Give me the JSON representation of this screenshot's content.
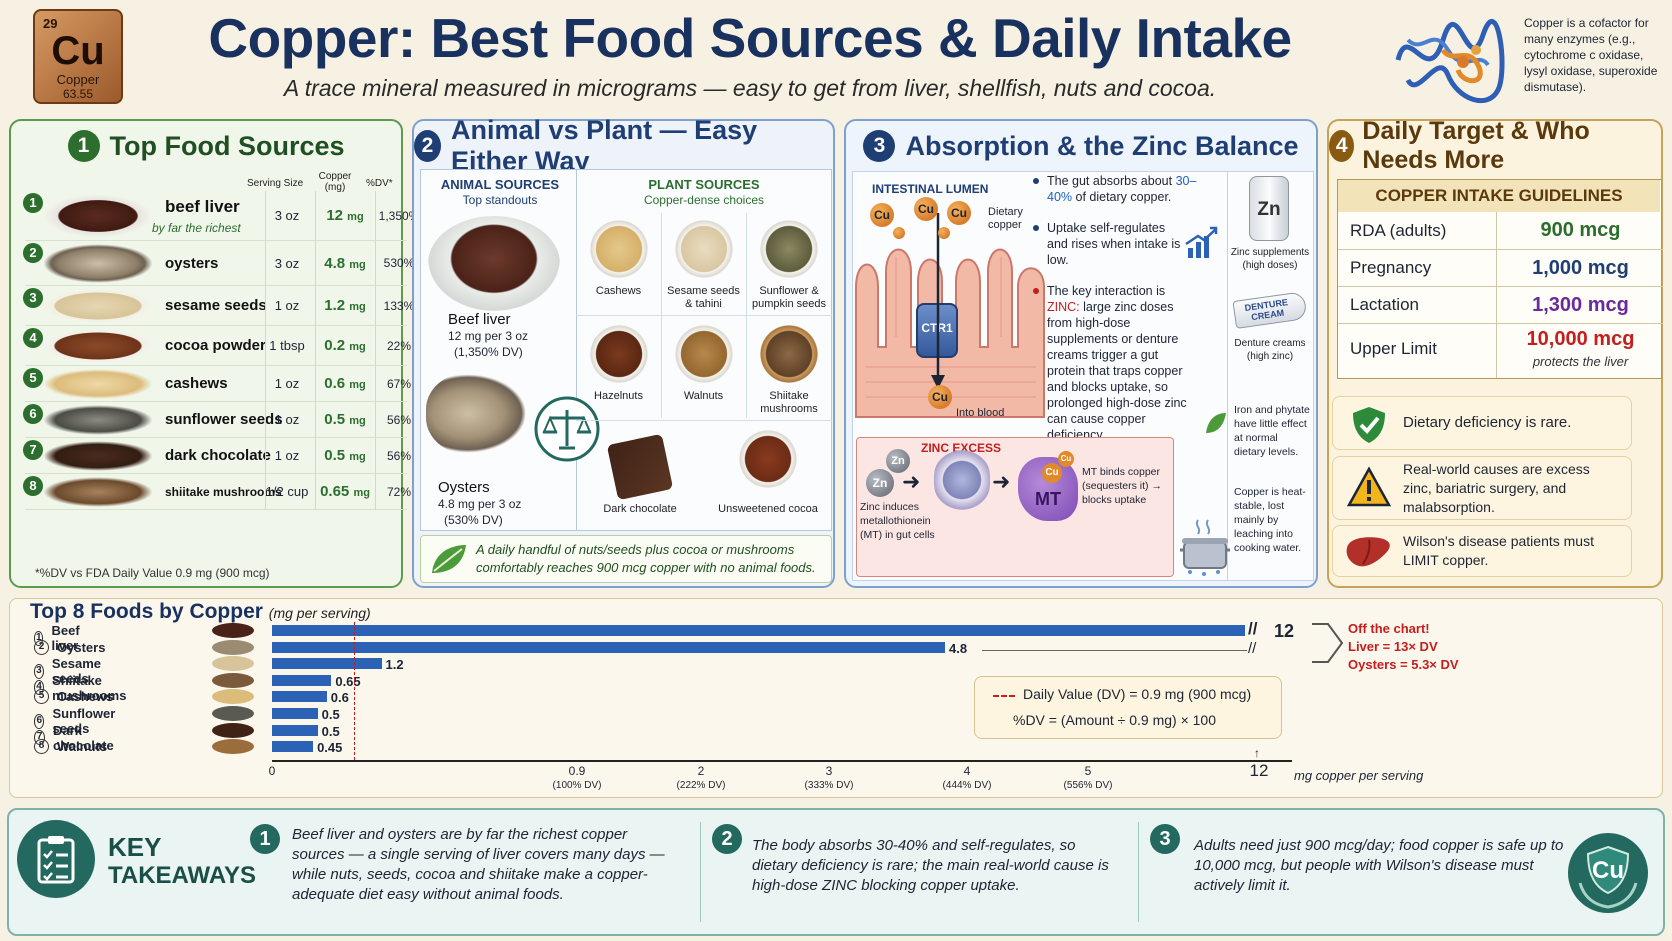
{
  "element": {
    "number": "29",
    "symbol": "Cu",
    "name": "Copper",
    "mass": "63.55"
  },
  "title": "Copper: Best Food Sources & Daily Intake",
  "subtitle": "A trace mineral measured in micrograms — easy to get from liver, shellfish, nuts and cocoa.",
  "enzyme_note": "Copper is a cofactor for many enzymes (e.g., cytochrome c oxidase, lysyl oxidase, superoxide dismutase).",
  "colors": {
    "green": "#2c6e2e",
    "blue": "#1e3e74",
    "navy": "#18315e",
    "amber": "#8a5a12",
    "teal": "#24695f",
    "bar": "#2b62b5",
    "red": "#c41e1e",
    "purple": "#6a2a9c"
  },
  "panel1": {
    "number": "1",
    "title": "Top Food Sources",
    "headers": {
      "serving": "Serving Size",
      "copper": "Copper (mg)",
      "dv": "%DV*"
    },
    "rows": [
      {
        "rank": "1",
        "food": "beef liver",
        "note": "by far the richest",
        "serving": "3 oz",
        "mg": "12",
        "unit": "mg",
        "dv": "1,350%"
      },
      {
        "rank": "2",
        "food": "oysters",
        "note": "",
        "serving": "3 oz",
        "mg": "4.8",
        "unit": "mg",
        "dv": "530%"
      },
      {
        "rank": "3",
        "food": "sesame seeds",
        "note": "",
        "serving": "1 oz",
        "mg": "1.2",
        "unit": "mg",
        "dv": "133%"
      },
      {
        "rank": "4",
        "food": "cocoa powder",
        "note": "",
        "serving": "1 tbsp",
        "mg": "0.2",
        "unit": "mg",
        "dv": "22%"
      },
      {
        "rank": "5",
        "food": "cashews",
        "note": "",
        "serving": "1 oz",
        "mg": "0.6",
        "unit": "mg",
        "dv": "67%"
      },
      {
        "rank": "6",
        "food": "sunflower seeds",
        "note": "",
        "serving": "1 oz",
        "mg": "0.5",
        "unit": "mg",
        "dv": "56%"
      },
      {
        "rank": "7",
        "food": "dark chocolate",
        "note": "",
        "serving": "1 oz",
        "mg": "0.5",
        "unit": "mg",
        "dv": "56%"
      },
      {
        "rank": "8",
        "food": "shiitake mushrooms",
        "note": "",
        "serving": "1/2 cup",
        "mg": "0.65",
        "unit": "mg",
        "dv": "72%"
      }
    ],
    "footnote": "*%DV vs FDA Daily Value 0.9 mg (900 mcg)"
  },
  "panel2": {
    "number": "2",
    "title": "Animal vs Plant — Easy Either Way",
    "animal_title": "ANIMAL SOURCES",
    "animal_sub": "Top standouts",
    "beef": {
      "name": "Beef liver",
      "line1": "12 mg per 3 oz",
      "line2": "(1,350% DV)"
    },
    "oysters": {
      "name": "Oysters",
      "line1": "4.8 mg per 3 oz",
      "line2": "(530% DV)"
    },
    "plant_title": "PLANT SOURCES",
    "plant_sub": "Copper-dense choices",
    "plants": [
      "Cashews",
      "Sesame seeds & tahini",
      "Sunflower & pumpkin seeds",
      "Hazelnuts",
      "Walnuts",
      "Shiitake mushrooms",
      "Dark chocolate",
      "Unsweetened cocoa"
    ],
    "footer": "A daily handful of nuts/seeds plus cocoa or mushrooms comfortably reaches 900 mcg copper with no animal foods."
  },
  "panel3": {
    "number": "3",
    "title": "Absorption & the Zinc Balance",
    "lumen": "INTESTINAL LUMEN",
    "dietary": "Dietary copper",
    "cu": "Cu",
    "ctr1": "CTR1",
    "blood": "Into blood",
    "b1_pre": "The gut absorbs about ",
    "b1_hl": "30–40%",
    "b1_post": " of dietary copper.",
    "b2": "Uptake self-regulates and rises when intake is low.",
    "b3_pre": "The key interaction is ",
    "b3_hl": "ZINC:",
    "b3_post": " large zinc doses from high-dose supplements or denture creams trigger a gut protein that traps copper and blocks uptake, so prolonged high-dose zinc can cause copper deficiency.",
    "zn": "Zn",
    "zinc_supp": "Zinc supplements (high doses)",
    "denture_label": "DENTURE CREAM",
    "denture": "Denture creams (high zinc)",
    "iron": "Iron and phytate have little effect at normal dietary levels.",
    "cooking": "Copper is heat-stable, lost mainly by leaching into cooking water.",
    "excess_title": "ZINC EXCESS",
    "excess_left": "Zinc induces metallothionein (MT) in gut cells",
    "mt": "MT",
    "excess_right": "MT binds copper (sequesters it) → blocks uptake"
  },
  "panel4": {
    "number": "4",
    "title": "Daily Target & Who Needs More",
    "guide_title": "COPPER INTAKE GUIDELINES",
    "rows": [
      {
        "label": "RDA (adults)",
        "value": "900 mcg",
        "sub": ""
      },
      {
        "label": "Pregnancy",
        "value": "1,000 mcg",
        "sub": ""
      },
      {
        "label": "Lactation",
        "value": "1,300 mcg",
        "sub": ""
      },
      {
        "label": "Upper Limit",
        "value": "10,000 mcg",
        "sub": "protects the liver"
      }
    ],
    "card1": "Dietary deficiency is rare.",
    "card2": "Real-world causes are excess zinc, bariatric surgery, and malabsorption.",
    "card3": "Wilson's disease patients must LIMIT copper."
  },
  "chart_title": "Top 8 Foods by Copper",
  "chart_title_sub": "(mg per serving)",
  "chart_data": {
    "type": "bar",
    "categories": [
      "Beef liver",
      "Oysters",
      "Sesame seeds",
      "Shiitake mushrooms",
      "Cashews",
      "Sunflower seeds",
      "Dark chocolate",
      "Walnuts"
    ],
    "values": [
      12,
      4.8,
      1.2,
      0.65,
      0.6,
      0.5,
      0.5,
      0.45
    ],
    "value_labels": [
      "12",
      "4.8",
      "1.2",
      "0.65",
      "0.6",
      "0.5",
      "0.5",
      "0.45"
    ],
    "xlabel": "mg copper per serving",
    "xticks": [
      {
        "v": "0",
        "dv": ""
      },
      {
        "v": "0.9",
        "dv": "(100% DV)"
      },
      {
        "v": "2",
        "dv": "(222% DV)"
      },
      {
        "v": "3",
        "dv": "(333% DV)"
      },
      {
        "v": "4",
        "dv": "(444% DV)"
      },
      {
        "v": "5",
        "dv": "(556% DV)"
      },
      {
        "v": "12",
        "dv": ""
      }
    ],
    "reference_line": 0.9,
    "broken_axis": true,
    "break_marks": [
      "//",
      "//"
    ],
    "offchart_title": "Off the chart!",
    "offchart_liver": "Liver = 13× DV",
    "offchart_oysters": "Oysters = 5.3× DV",
    "dv_legend": "Daily Value (DV) = 0.9 mg (900 mcg)",
    "dv_formula": "%DV = (Amount ÷ 0.9 mg) × 100",
    "grid": false
  },
  "takeaways": {
    "title1": "KEY",
    "title2": "TAKEAWAYS",
    "items": [
      {
        "n": "1",
        "text": "Beef liver and oysters are by far the richest copper sources — a single serving of liver covers many days — while nuts, seeds, cocoa and shiitake make a copper-adequate diet easy without animal foods."
      },
      {
        "n": "2",
        "text": "The body absorbs 30-40% and self-regulates, so dietary deficiency is rare; the main real-world cause is high-dose ZINC blocking copper uptake."
      },
      {
        "n": "3",
        "text": "Adults need just 900 mcg/day; food copper is safe up to 10,000 mcg, but people with Wilson's disease must actively limit it."
      }
    ],
    "badge": "Cu"
  }
}
